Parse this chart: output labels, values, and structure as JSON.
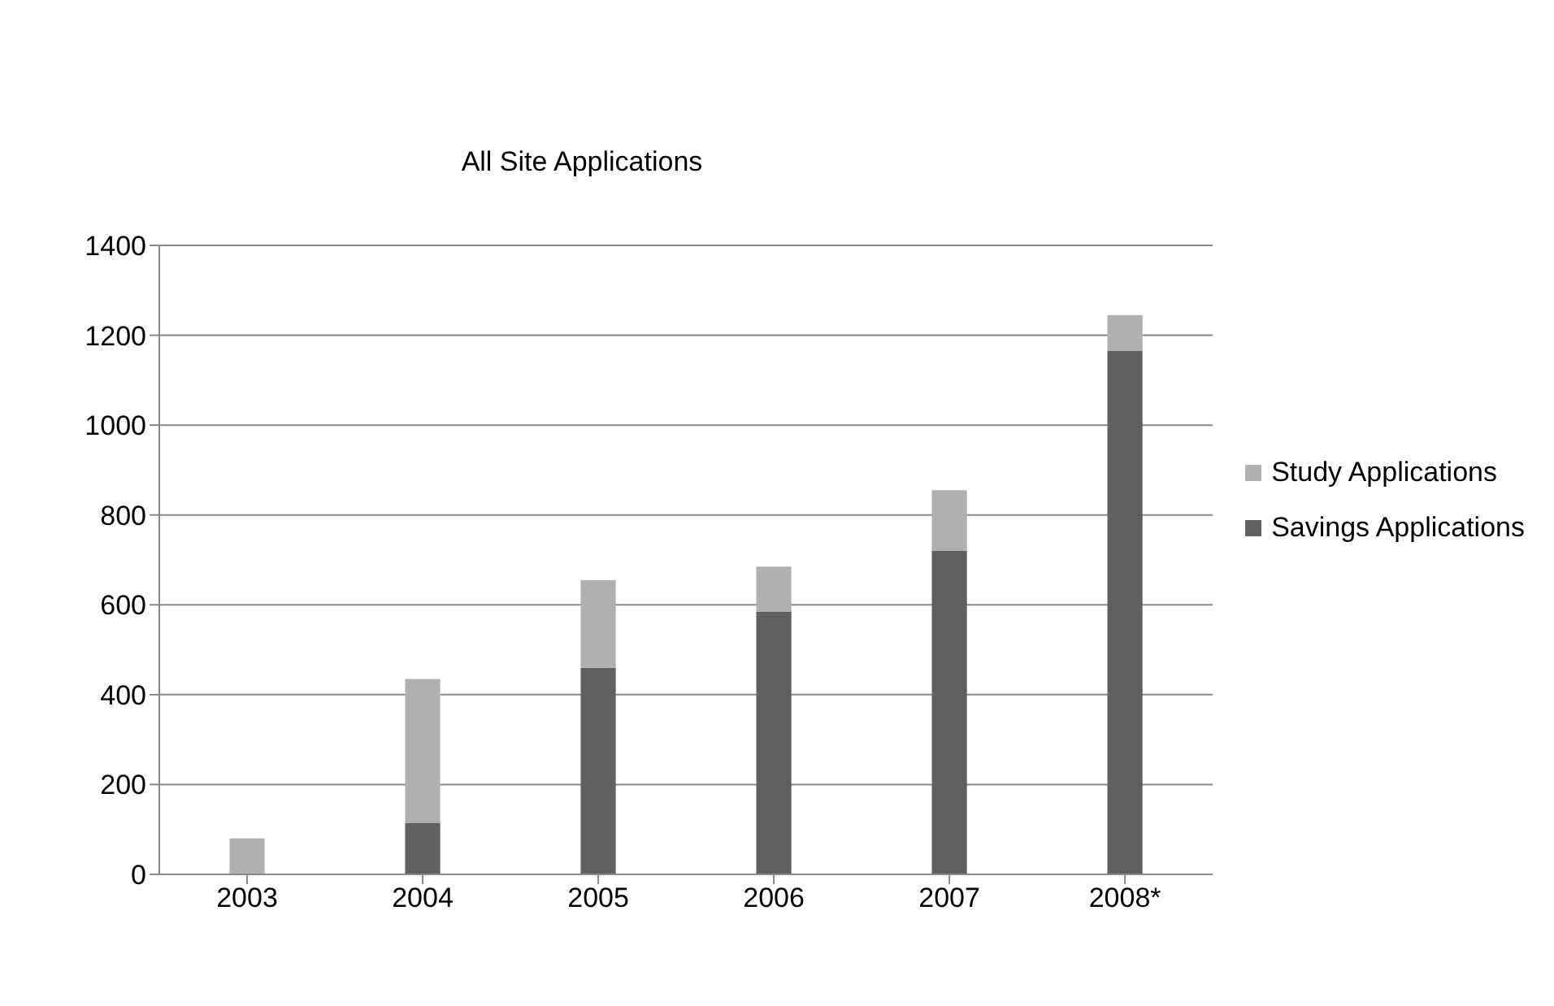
{
  "chart_data": {
    "type": "bar",
    "title": "All Site Applications",
    "categories": [
      "2003",
      "2004",
      "2005",
      "2006",
      "2007",
      "2008*"
    ],
    "stacked": true,
    "series": [
      {
        "name": "Savings Applications",
        "color": "#606060",
        "values": [
          0,
          115,
          460,
          585,
          720,
          1165
        ]
      },
      {
        "name": "Study Applications",
        "color": "#b0b0b0",
        "values": [
          80,
          320,
          195,
          100,
          135,
          80
        ]
      }
    ],
    "ylim": [
      0,
      1400
    ],
    "yticks": [
      0,
      200,
      400,
      600,
      800,
      1000,
      1200,
      1400
    ],
    "grid": "y",
    "legend": "right"
  }
}
